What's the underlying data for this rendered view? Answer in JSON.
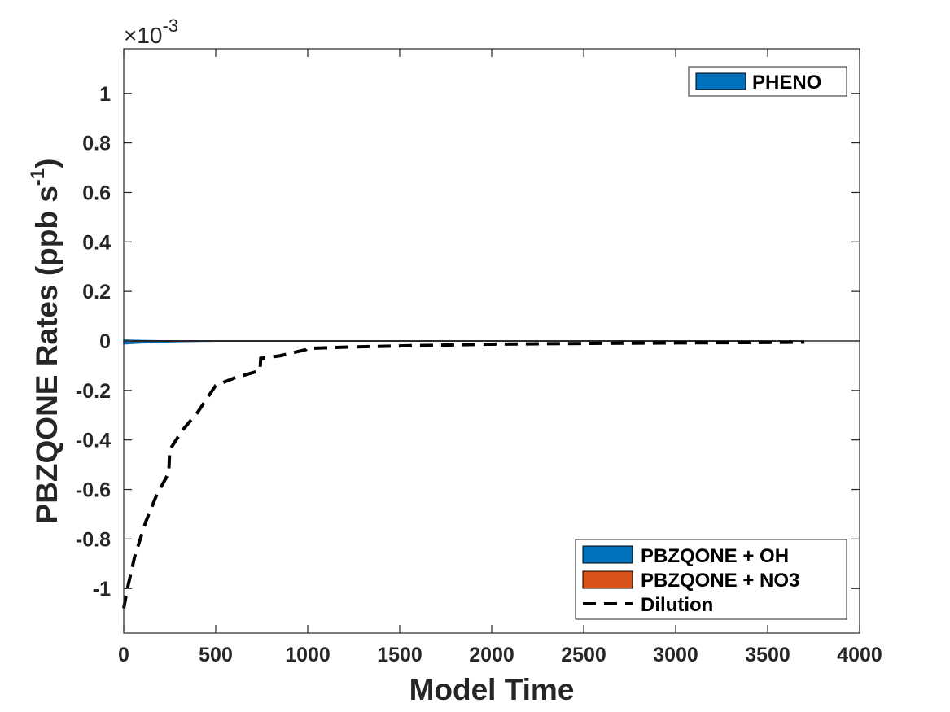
{
  "chart_data": {
    "type": "line",
    "xlabel": "Model Time",
    "ylabel": "PBZQONE Rates (ppb s",
    "ylabel_superscript": "-1",
    "ylabel_close": ")",
    "y_exponent_prefix": "×10",
    "y_exponent_value": "-3",
    "xlim": [
      0,
      4000
    ],
    "ylim": [
      -1.18,
      1.18
    ],
    "xticks": [
      0,
      500,
      1000,
      1500,
      2000,
      2500,
      3000,
      3500,
      4000
    ],
    "xtick_labels": [
      "0",
      "500",
      "1000",
      "1500",
      "2000",
      "2500",
      "3000",
      "3500",
      "4000"
    ],
    "yticks": [
      -1,
      -0.8,
      -0.6,
      -0.4,
      -0.2,
      0,
      0.2,
      0.4,
      0.6,
      0.8,
      1
    ],
    "ytick_labels": [
      "-1",
      "-0.8",
      "-0.6",
      "-0.4",
      "-0.2",
      "0",
      "0.2",
      "0.4",
      "0.6",
      "0.8",
      "1"
    ],
    "legend_production": {
      "placement": "top-right",
      "entries": [
        {
          "label": "PHENO",
          "color": "#0072BD",
          "style": "patch"
        }
      ]
    },
    "legend_loss": {
      "placement": "bottom-right",
      "entries": [
        {
          "label": "PBZQONE + OH",
          "color": "#0072BD",
          "style": "patch"
        },
        {
          "label": "PBZQONE + NO3",
          "color": "#D95319",
          "style": "patch"
        },
        {
          "label": "Dilution",
          "color": "#000000",
          "style": "dashed"
        }
      ]
    },
    "series": [
      {
        "name": "PHENO",
        "kind": "area",
        "color": "#0072BD",
        "x": [
          0,
          50,
          100,
          200,
          300,
          500,
          1000,
          3700
        ],
        "values": [
          0.004,
          0.003,
          0.002,
          0.001,
          0.0005,
          0.0002,
          0.0001,
          0
        ]
      },
      {
        "name": "PBZQONE + OH",
        "kind": "area",
        "color": "#0072BD",
        "x": [
          0,
          50,
          100,
          200,
          300,
          500,
          1000,
          3700
        ],
        "values": [
          -0.012,
          -0.01,
          -0.008,
          -0.005,
          -0.003,
          -0.001,
          -0.0004,
          0
        ]
      },
      {
        "name": "PBZQONE + NO3",
        "kind": "area",
        "color": "#D95319",
        "x": [
          0,
          3700
        ],
        "values": [
          0,
          0
        ]
      },
      {
        "name": "Dilution",
        "kind": "line",
        "style": "dashed",
        "color": "#000000",
        "x": [
          0,
          20,
          60,
          120,
          180,
          240,
          245,
          250,
          320,
          400,
          500,
          600,
          740,
          745,
          750,
          850,
          990,
          995,
          1000,
          1200,
          1500,
          2000,
          2500,
          3000,
          3500,
          3700
        ],
        "values": [
          -1.08,
          -1.0,
          -0.87,
          -0.73,
          -0.62,
          -0.54,
          -0.53,
          -0.44,
          -0.36,
          -0.29,
          -0.18,
          -0.15,
          -0.12,
          -0.07,
          -0.07,
          -0.06,
          -0.035,
          -0.03,
          -0.03,
          -0.025,
          -0.02,
          -0.013,
          -0.01,
          -0.008,
          -0.006,
          -0.005
        ]
      }
    ]
  }
}
